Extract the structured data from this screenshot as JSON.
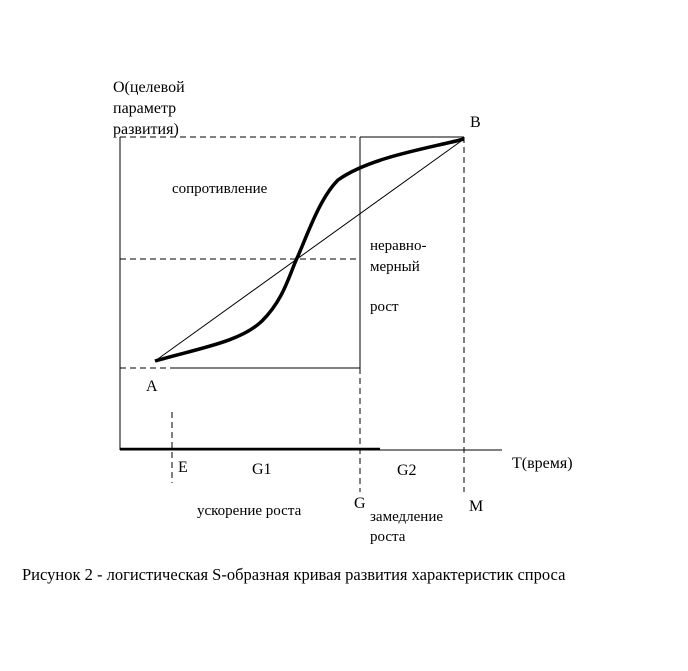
{
  "y_axis_label": [
    "O(целевой",
    "параметр",
    "развития)"
  ],
  "x_axis_label": "T(время)",
  "points": {
    "a": "A",
    "b": "B",
    "e": "E",
    "g": "G",
    "m": "M"
  },
  "segments": {
    "g1": "G1",
    "g2": "G2"
  },
  "annotations": {
    "resistance": "сопротивление",
    "uneven": [
      "неравно-",
      "мерный",
      "рост"
    ],
    "acceleration": "ускорение  роста",
    "deceleration": [
      "замедление",
      "роста"
    ]
  },
  "caption": "Рисунок 2 - логистическая S-образная кривая развития характеристик спроса"
}
